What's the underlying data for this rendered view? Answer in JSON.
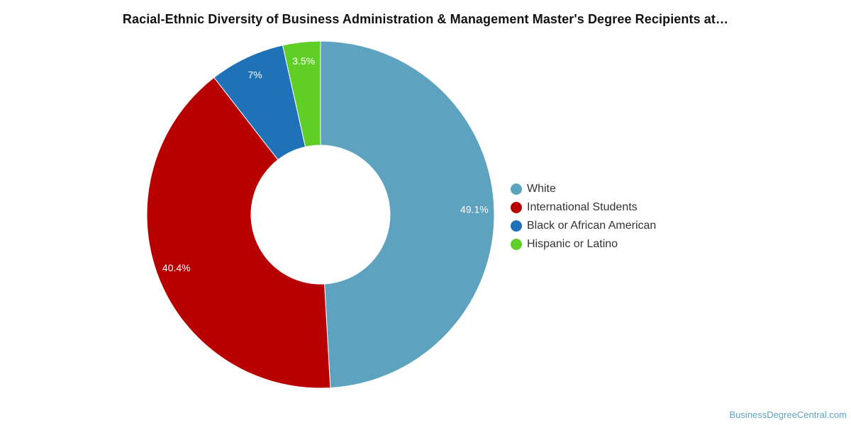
{
  "chart_data": {
    "type": "pie",
    "title": "Racial-Ethnic Diversity of Business Administration & Management Master's Degree Recipients at…",
    "donut": true,
    "legend_position": "right",
    "slices": [
      {
        "label": "White",
        "value": 49.1,
        "value_label": "49.1%",
        "color": "#5da2bf"
      },
      {
        "label": "International Students",
        "value": 40.4,
        "value_label": "40.4%",
        "color": "#b80000"
      },
      {
        "label": "Black or African American",
        "value": 7,
        "value_label": "7%",
        "color": "#1f72b8"
      },
      {
        "label": "Hispanic or Latino",
        "value": 3.5,
        "value_label": "3.5%",
        "color": "#5fcf27"
      }
    ]
  },
  "credit": "BusinessDegreeCentral.com"
}
